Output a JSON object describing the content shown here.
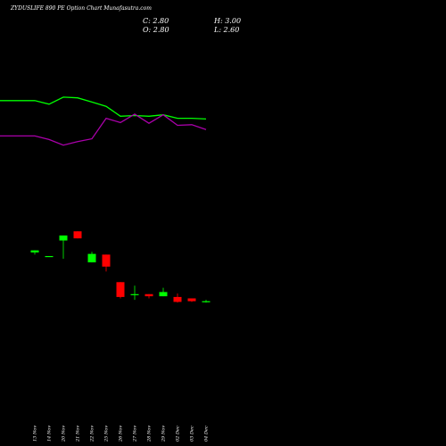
{
  "chart_data": {
    "type": "candlestick",
    "title": "ZYDUSLIFE 890  PE Option  Chart Munafasutra.com",
    "ohlc_readout": {
      "close": "C: 2.80",
      "high": "H: 3.00",
      "open": "O: 2.80",
      "low": "L: 2.60"
    },
    "x_labels": [
      "13 Nov",
      "14 Nov",
      "20 Nov",
      "21 Nov",
      "22 Nov",
      "25 Nov",
      "26 Nov",
      "27 Nov",
      "28 Nov",
      "29 Nov",
      "02 Dec",
      "03 Dec",
      "04 Dec"
    ],
    "candles": [
      {
        "open": 9.3,
        "high": 9.6,
        "low": 9.0,
        "close": 9.6,
        "color": "#00ff00"
      },
      {
        "open": 8.8,
        "high": 8.8,
        "low": 8.8,
        "close": 8.8,
        "color": "#00ff00"
      },
      {
        "open": 11.0,
        "high": 11.7,
        "low": 8.4,
        "close": 11.7,
        "color": "#00ff00"
      },
      {
        "open": 12.3,
        "high": 12.3,
        "low": 11.3,
        "close": 11.3,
        "color": "#ff0000"
      },
      {
        "open": 7.9,
        "high": 9.4,
        "low": 7.9,
        "close": 9.1,
        "color": "#00ff00"
      },
      {
        "open": 9.0,
        "high": 9.0,
        "low": 6.6,
        "close": 7.3,
        "color": "#ff0000"
      },
      {
        "open": 5.1,
        "high": 5.1,
        "low": 2.8,
        "close": 3.0,
        "color": "#ff0000"
      },
      {
        "open": 3.4,
        "high": 4.6,
        "low": 2.6,
        "close": 3.4,
        "color": "#00ff00"
      },
      {
        "open": 3.4,
        "high": 3.4,
        "low": 2.8,
        "close": 3.1,
        "color": "#ff0000"
      },
      {
        "open": 3.1,
        "high": 4.3,
        "low": 3.1,
        "close": 3.7,
        "color": "#00ff00"
      },
      {
        "open": 3.0,
        "high": 3.5,
        "low": 2.2,
        "close": 2.3,
        "color": "#ff0000"
      },
      {
        "open": 2.8,
        "high": 2.8,
        "low": 2.3,
        "close": 2.4,
        "color": "#ff0000"
      },
      {
        "open": 2.4,
        "high": 2.6,
        "low": 2.2,
        "close": 2.4,
        "color": "#00ff00"
      }
    ],
    "lines": [
      {
        "color": "#00ff00",
        "values": [
          30.8,
          30.8,
          30.3,
          31.3,
          31.2,
          30.6,
          30.0,
          28.6,
          28.7,
          28.6,
          28.8,
          28.3,
          28.3,
          28.2
        ]
      },
      {
        "color": "#aa00aa",
        "values": [
          25.8,
          25.8,
          25.3,
          24.5,
          25.0,
          25.4,
          28.3,
          27.7,
          28.9,
          27.6,
          28.8,
          27.3,
          27.4,
          26.7
        ]
      }
    ],
    "x_padding": 0.5,
    "y_range": [
      -8,
      40
    ]
  }
}
